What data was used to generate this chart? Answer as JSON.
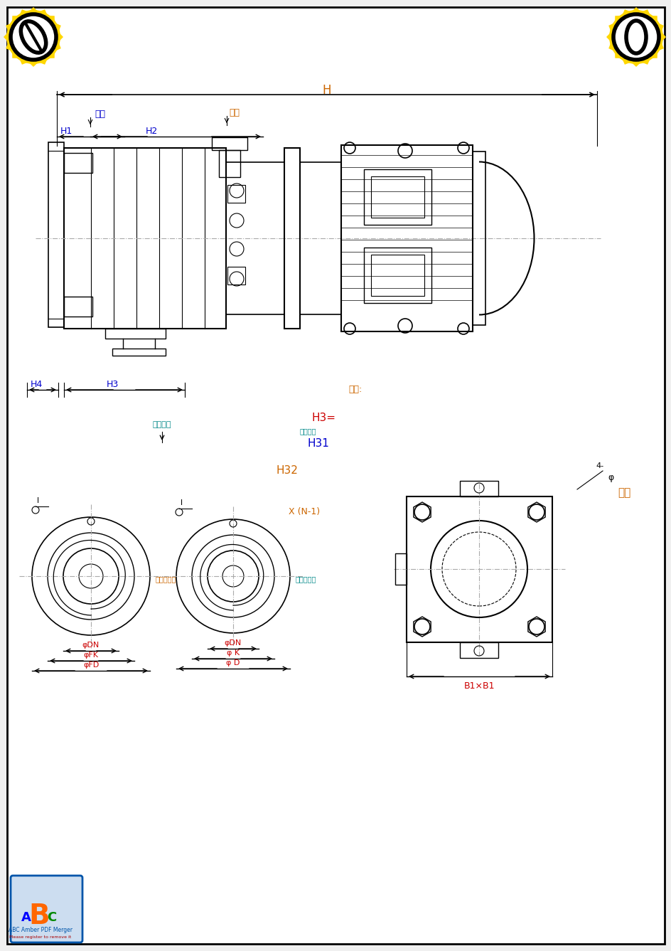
{
  "title": "",
  "bg_color": "#f0f0f0",
  "paper_color": "#ffffff",
  "line_color": "#000000",
  "dim_color_blue": "#0000cc",
  "dim_color_orange": "#cc6600",
  "dim_color_red": "#cc0000",
  "dim_color_cyan": "#008888",
  "logo_color_left": "#FFD700",
  "logo_color_right": "#FFD700",
  "note_color": "#cc6600",
  "label_H": "H",
  "label_H1": "H1",
  "label_H2": "H2",
  "label_H3": "H3",
  "label_H4": "H4",
  "label_H3eq": "H3=",
  "label_H31": "H31",
  "label_H32": "H32",
  "label_xiru": "吸入",
  "label_tuchu": "吐出",
  "label_zhongxin": "中心高度",
  "label_zhujing": "注意事项",
  "label_note": "注意:",
  "label_xN1": "X (N-1)",
  "label_phi4": "φ",
  "label_4dash": "4-",
  "label_xingHao": "型号",
  "label_phiDN": "φDN",
  "label_phiFK": "φFK",
  "label_phiFD": "φFD",
  "label_phiDN2": "φDN",
  "label_phiK": "φ K",
  "label_phiD": "φ D",
  "label_B1xB1": "B1×B1",
  "label_xiru2": "吸口中心线",
  "label_tuchu2": "出口中心线"
}
